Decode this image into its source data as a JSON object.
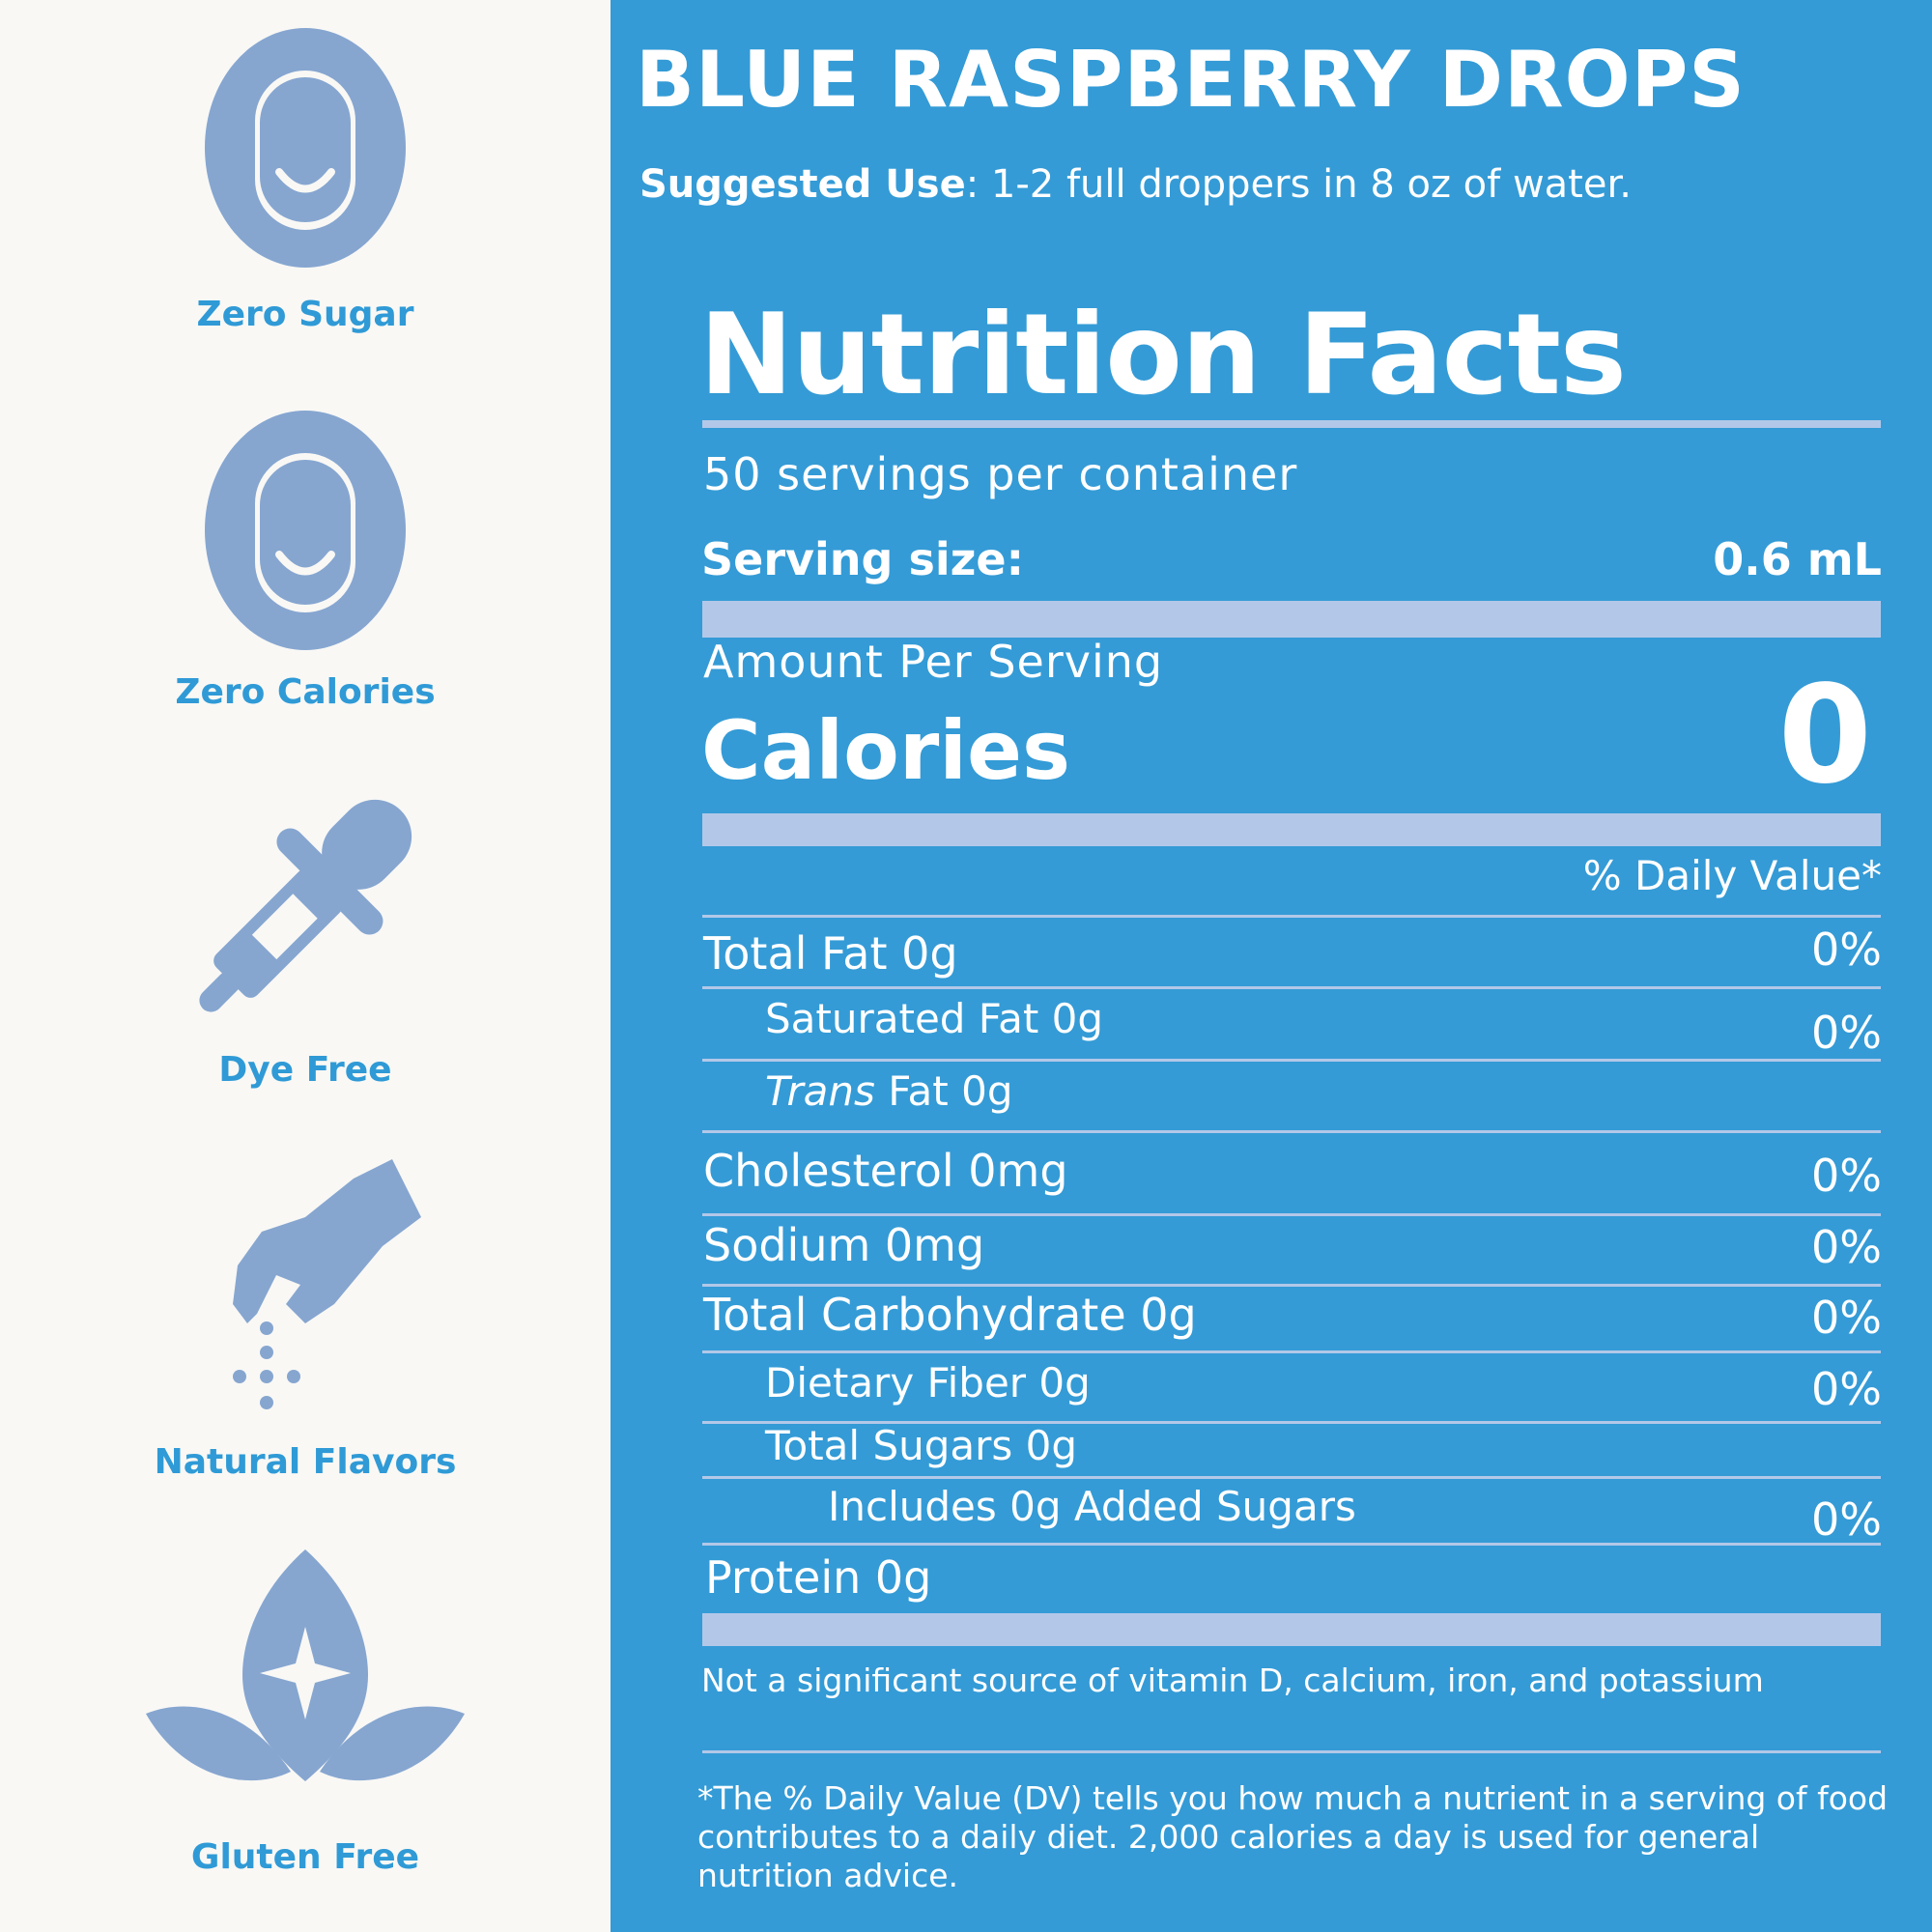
{
  "badges": [
    {
      "icon": "zero-icon",
      "label": "Zero Sugar"
    },
    {
      "icon": "zero-icon",
      "label": "Zero Calories"
    },
    {
      "icon": "dropper-icon",
      "label": "Dye Free"
    },
    {
      "icon": "hand-sprinkle-icon",
      "label": "Natural Flavors"
    },
    {
      "icon": "leaf-sparkle-icon",
      "label": "Gluten Free"
    }
  ],
  "product": {
    "title": "BLUE RASPBERRY DROPS",
    "suggested_label": "Suggested Use",
    "suggested_text": ": 1-2 full droppers in 8 oz of water."
  },
  "nutrition": {
    "title": "Nutrition Facts",
    "servings": "50 servings per container",
    "serving_size_label": "Serving size:",
    "serving_size_value": "0.6 mL",
    "amount_per_serving": "Amount Per Serving",
    "calories_label": "Calories",
    "calories_value": "0",
    "dv_header": "% Daily Value*",
    "rows": [
      {
        "label": "Total Fat 0g",
        "dv": "0%"
      },
      {
        "label": "Saturated Fat 0g",
        "dv": "0%"
      },
      {
        "label_italic": "Trans",
        "label": " Fat 0g",
        "dv": ""
      },
      {
        "label": "Cholesterol 0mg",
        "dv": "0%"
      },
      {
        "label": "Sodium 0mg",
        "dv": "0%"
      },
      {
        "label": "Total Carbohydrate 0g",
        "dv": "0%"
      },
      {
        "label": "Dietary Fiber 0g",
        "dv": "0%"
      },
      {
        "label": "Total Sugars 0g",
        "dv": ""
      },
      {
        "label": "Includes 0g Added Sugars",
        "dv": "0%"
      },
      {
        "label": "Protein 0g",
        "dv": ""
      }
    ],
    "footnote_vitamins": "Not a significant source of vitamin D, calcium, iron, and potassium",
    "footnote_dv": "*The % Daily Value (DV) tells you how much a nutrient in a serving of food contributes to a daily diet. 2,000 calories a day is used for general nutrition advice."
  },
  "colors": {
    "panel_bg": "#349bd6",
    "icon": "#86a6d0",
    "label": "#2f9ad6",
    "rule": "#b3c8e8"
  }
}
